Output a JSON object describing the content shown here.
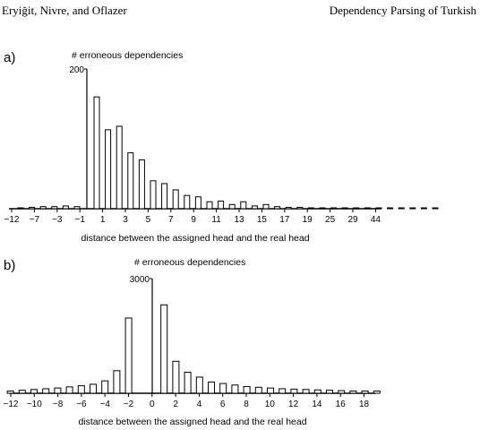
{
  "header": {
    "authors": "Eryiğit, Nivre, and Oflazer",
    "title": "Dependency Parsing of Turkish"
  },
  "chart_data": [
    {
      "type": "bar",
      "panel_label": "a)",
      "ylabel": "# erroneous dependencies",
      "xlabel": "distance between the assigned head and the real head",
      "ytick_label": "200",
      "ymax_tick": 200,
      "x": [
        -12,
        -10,
        -8,
        -6,
        -4,
        -2,
        1,
        2,
        3,
        4,
        5,
        6,
        7,
        8,
        9,
        10,
        11,
        12,
        13,
        14,
        15,
        16,
        17,
        18,
        19,
        20,
        21,
        22,
        23,
        24,
        25,
        26,
        27,
        28,
        29,
        30,
        31
      ],
      "values": [
        1,
        2,
        3,
        3,
        4,
        3,
        160,
        113,
        118,
        80,
        70,
        40,
        36,
        27,
        19,
        17,
        10,
        11,
        6,
        10,
        4,
        6,
        3,
        2,
        2,
        1,
        1,
        1,
        1,
        1,
        1,
        1,
        1,
        1,
        1,
        1,
        1
      ],
      "tick_labels": [
        "−12",
        "−7",
        "−3",
        "−1",
        "1",
        "3",
        "5",
        "7",
        "9",
        "11",
        "13",
        "15",
        "17",
        "19",
        "25",
        "29",
        "44"
      ]
    },
    {
      "type": "bar",
      "panel_label": "b)",
      "ylabel": "# erroneous dependencies",
      "xlabel": "distance between the assigned head and the real head",
      "ytick_label": "3000",
      "ymax_tick": 3000,
      "x": [
        -12,
        -11,
        -10,
        -9,
        -8,
        -7,
        -6,
        -5,
        -4,
        -3,
        -2,
        -1,
        1,
        2,
        3,
        4,
        5,
        6,
        7,
        8,
        9,
        10,
        11,
        12,
        13,
        14,
        15,
        16,
        17,
        18,
        19
      ],
      "values": [
        60,
        80,
        100,
        120,
        140,
        170,
        200,
        240,
        330,
        600,
        2000,
        0,
        2350,
        850,
        560,
        430,
        300,
        260,
        220,
        180,
        160,
        140,
        120,
        110,
        100,
        90,
        80,
        70,
        60,
        60,
        60
      ],
      "tick_labels": [
        "−12",
        "−10",
        "−8",
        "−6",
        "−4",
        "−2",
        "0",
        "2",
        "4",
        "6",
        "8",
        "10",
        "12",
        "14",
        "16",
        "18"
      ]
    }
  ]
}
